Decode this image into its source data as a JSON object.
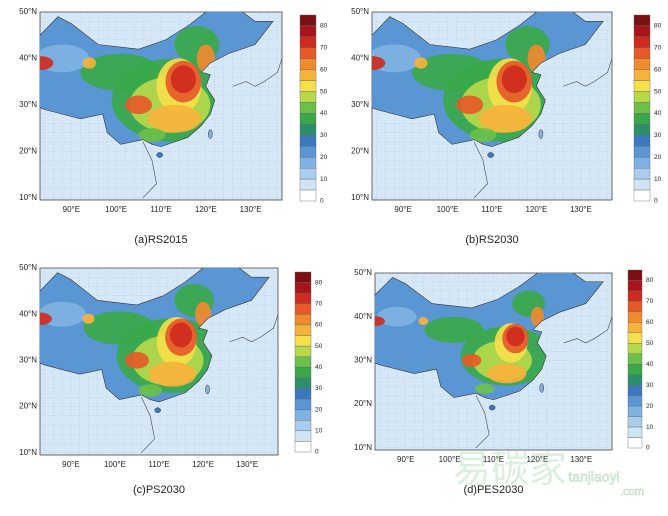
{
  "panels": [
    {
      "caption": "(a)RS2015",
      "lat_labels": [
        "50°N",
        "40°N",
        "30°N",
        "20°N",
        "10°N"
      ],
      "lon_labels": [
        "90°E",
        "100°E",
        "110°E",
        "120°E",
        "130°E"
      ],
      "colorbar_labels": [
        80,
        70,
        60,
        50,
        40,
        30,
        20,
        10,
        0
      ]
    },
    {
      "caption": "(b)RS2030",
      "lat_labels": [
        "50°N",
        "40°N",
        "30°N",
        "20°N",
        "10°N"
      ],
      "lon_labels": [
        "90°E",
        "100°E",
        "110°E",
        "120°E",
        "130°E"
      ],
      "colorbar_labels": [
        80,
        70,
        60,
        50,
        40,
        30,
        20,
        10,
        0
      ]
    },
    {
      "caption": "(c)PS2030",
      "lat_labels": [
        "50°N",
        "40°N",
        "30°N",
        "20°N",
        "10°N"
      ],
      "lon_labels": [
        "90°E",
        "100°E",
        "110°E",
        "120°E",
        "130°E"
      ],
      "colorbar_labels": [
        80,
        70,
        60,
        50,
        40,
        30,
        20,
        10,
        0
      ]
    },
    {
      "caption": "(d)PES2030",
      "lat_labels": [
        "50°N",
        "40°N",
        "30°N",
        "20°N",
        "10°N"
      ],
      "lon_labels": [
        "90°E",
        "100°E",
        "110°E",
        "120°E",
        "130°E"
      ],
      "colorbar_labels": [
        80,
        70,
        60,
        50,
        40,
        30,
        20,
        10,
        0
      ]
    }
  ],
  "colorbar_colors": [
    "#7a0f14",
    "#a8141a",
    "#cf2a1f",
    "#e55a28",
    "#f08a2e",
    "#f6b33a",
    "#f4e04a",
    "#b5d94a",
    "#6cc04a",
    "#3aa84a",
    "#2c8f6a",
    "#3a78bf",
    "#5a96d3",
    "#7fb2e2",
    "#a9cdee",
    "#cfe4f5",
    "#ffffff"
  ],
  "watermark": {
    "brand": "易碳家",
    "site": "tanjiaoyi",
    "domain": ".com"
  }
}
